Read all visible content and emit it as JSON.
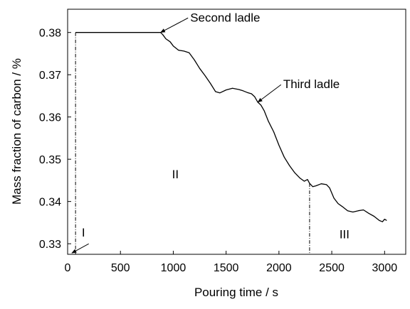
{
  "chart_data": {
    "type": "line",
    "title": "",
    "xlabel": "Pouring time / s",
    "ylabel": "Mass fraction of carbon / %",
    "xlim": [
      0,
      3200
    ],
    "ylim": [
      0.3275,
      0.3855
    ],
    "x_ticks": [
      0,
      500,
      1000,
      1500,
      2000,
      2500,
      3000
    ],
    "y_ticks": [
      0.33,
      0.34,
      0.35,
      0.36,
      0.37,
      0.38
    ],
    "x_tick_labels": [
      "0",
      "500",
      "1000",
      "1500",
      "2000",
      "2500",
      "3000"
    ],
    "y_tick_labels": [
      "0.33",
      "0.34",
      "0.35",
      "0.36",
      "0.37",
      "0.38"
    ],
    "grid": false,
    "legend": "none",
    "series": [
      {
        "x": [
          75,
          150,
          300,
          500,
          700,
          850,
          880,
          900,
          930,
          970,
          1000,
          1050,
          1100,
          1150,
          1200,
          1250,
          1300,
          1350,
          1400,
          1440,
          1500,
          1560,
          1620,
          1660,
          1700,
          1740,
          1770,
          1800,
          1830,
          1860,
          1900,
          1950,
          2000,
          2050,
          2100,
          2150,
          2200,
          2240,
          2270,
          2290,
          2320,
          2350,
          2400,
          2450,
          2480,
          2520,
          2560,
          2600,
          2650,
          2700,
          2750,
          2800,
          2850,
          2900,
          2950,
          2980,
          3000,
          3020
        ],
        "y": [
          0.38,
          0.38,
          0.38,
          0.38,
          0.38,
          0.38,
          0.38,
          0.3795,
          0.3785,
          0.3778,
          0.3768,
          0.3758,
          0.3756,
          0.3752,
          0.3735,
          0.3715,
          0.3698,
          0.368,
          0.366,
          0.3657,
          0.3664,
          0.3668,
          0.3665,
          0.3662,
          0.3658,
          0.3655,
          0.3648,
          0.3635,
          0.3628,
          0.3615,
          0.359,
          0.3565,
          0.3533,
          0.3505,
          0.3485,
          0.3468,
          0.3455,
          0.3448,
          0.3452,
          0.3443,
          0.3435,
          0.3437,
          0.3442,
          0.344,
          0.3432,
          0.3408,
          0.3395,
          0.3388,
          0.3378,
          0.3375,
          0.3378,
          0.338,
          0.3372,
          0.3365,
          0.3355,
          0.3352,
          0.3358,
          0.3355
        ]
      }
    ],
    "vlines": [
      75,
      2290
    ],
    "annotations": [
      {
        "text": "Second ladle",
        "x": 1160,
        "y": 0.3826,
        "point_x": 880,
        "point_y": 0.38
      },
      {
        "text": "Third ladle",
        "x": 2040,
        "y": 0.3668,
        "point_x": 1800,
        "point_y": 0.3635
      },
      {
        "text": "I",
        "x": 150,
        "y": 0.3317
      },
      {
        "text": "II",
        "x": 1020,
        "y": 0.3455
      },
      {
        "text": "III",
        "x": 2620,
        "y": 0.3313
      }
    ],
    "region_arrow": {
      "from_x": 200,
      "from_y": 0.33,
      "to_x": 40,
      "to_y": 0.3278
    }
  }
}
